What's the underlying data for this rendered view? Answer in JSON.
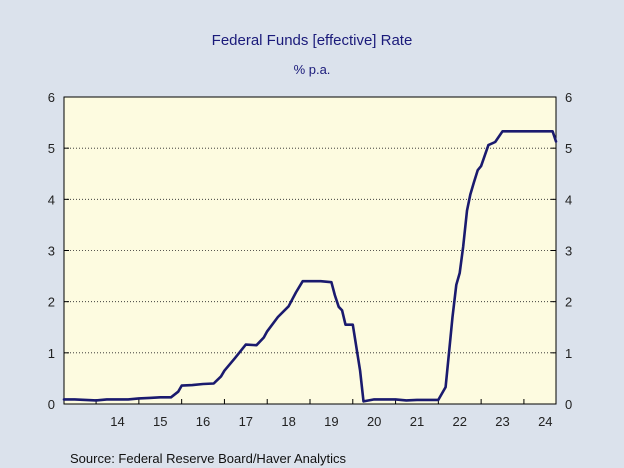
{
  "chart_data": {
    "type": "line",
    "title": "Federal Funds [effective] Rate",
    "subtitle": "% p.a.",
    "source": "Source:  Federal Reserve Board/Haver Analytics",
    "x_tick_labels": [
      "14",
      "15",
      "16",
      "17",
      "18",
      "19",
      "20",
      "21",
      "22",
      "23",
      "24"
    ],
    "y_tick_labels": [
      "0",
      "1",
      "2",
      "3",
      "4",
      "5",
      "6"
    ],
    "xlim": [
      2013.25,
      2024.75
    ],
    "ylim": [
      0,
      6
    ],
    "grid": "horizontal-dotted",
    "colors": {
      "background": "#dbe2ec",
      "plot_area": "#fdfbe0",
      "line": "#1a1a6e",
      "title": "#1a1a7a"
    },
    "series": [
      {
        "x": [
          2013.25,
          2013.5,
          2013.75,
          2014.0,
          2014.25,
          2014.5,
          2014.75,
          2015.0,
          2015.25,
          2015.5,
          2015.75,
          2015.92,
          2016.0,
          2016.25,
          2016.5,
          2016.75,
          2016.92,
          2017.0,
          2017.25,
          2017.5,
          2017.75,
          2017.92,
          2018.0,
          2018.25,
          2018.5,
          2018.67,
          2018.83,
          2019.0,
          2019.25,
          2019.5,
          2019.58,
          2019.67,
          2019.75,
          2019.83,
          2020.0,
          2020.17,
          2020.25,
          2020.5,
          2020.75,
          2021.0,
          2021.25,
          2021.5,
          2021.75,
          2022.0,
          2022.17,
          2022.25,
          2022.33,
          2022.42,
          2022.5,
          2022.58,
          2022.67,
          2022.75,
          2022.83,
          2022.92,
          2023.0,
          2023.17,
          2023.33,
          2023.5,
          2023.58,
          2023.75,
          2024.0,
          2024.25,
          2024.5,
          2024.67,
          2024.75
        ],
        "y": [
          0.09,
          0.09,
          0.08,
          0.07,
          0.09,
          0.09,
          0.09,
          0.11,
          0.12,
          0.13,
          0.13,
          0.24,
          0.36,
          0.37,
          0.39,
          0.4,
          0.54,
          0.65,
          0.9,
          1.16,
          1.15,
          1.3,
          1.42,
          1.7,
          1.91,
          2.18,
          2.4,
          2.4,
          2.4,
          2.38,
          2.13,
          1.9,
          1.83,
          1.55,
          1.55,
          0.65,
          0.05,
          0.09,
          0.09,
          0.09,
          0.07,
          0.08,
          0.08,
          0.08,
          0.33,
          1.0,
          1.7,
          2.33,
          2.56,
          3.08,
          3.78,
          4.1,
          4.33,
          4.57,
          4.65,
          5.06,
          5.12,
          5.33,
          5.33,
          5.33,
          5.33,
          5.33,
          5.33,
          5.33,
          5.13
        ]
      }
    ]
  }
}
